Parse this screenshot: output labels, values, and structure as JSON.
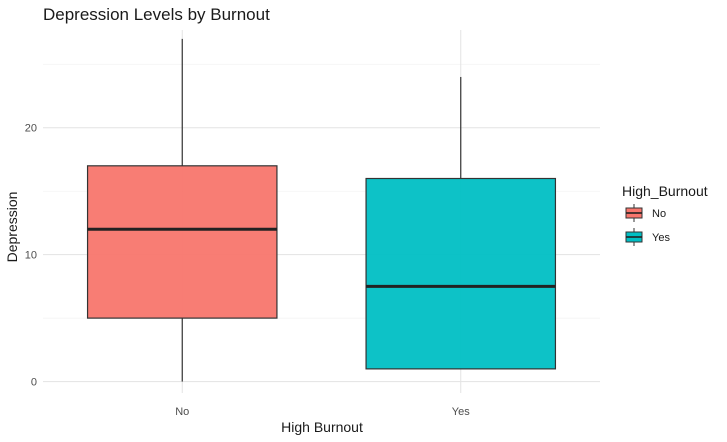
{
  "chart_data": {
    "type": "box",
    "title": "Depression Levels by Burnout",
    "xlabel": "High Burnout",
    "ylabel": "Depression",
    "categories": [
      "No",
      "Yes"
    ],
    "ylim": [
      -0.9,
      27.7
    ],
    "y_ticks": [
      0,
      10,
      20
    ],
    "grid": true,
    "legend": {
      "title": "High_Burnout",
      "position": "right",
      "entries": [
        "No",
        "Yes"
      ]
    },
    "boxes": [
      {
        "category": "No",
        "min": 0,
        "q1": 5,
        "median": 12,
        "q3": 17,
        "max": 27,
        "color": "#F8766D"
      },
      {
        "category": "Yes",
        "min": 1,
        "q1": 1,
        "median": 7.5,
        "q3": 16,
        "max": 24,
        "color": "#00BFC4"
      }
    ]
  }
}
